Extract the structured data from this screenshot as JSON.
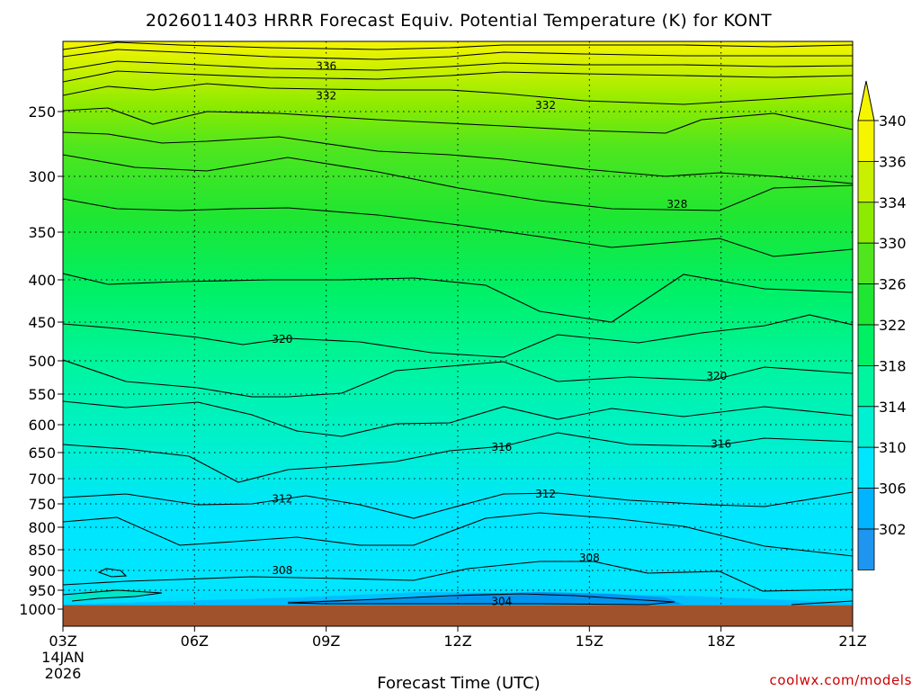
{
  "header": {
    "title": "2026011403 HRRR Forecast Equiv. Potential Temperature (K) for KONT"
  },
  "footer": {
    "credit": "coolwx.com/models"
  },
  "colors": {
    "ground": "#a0522d",
    "colorbar": [
      "#1e96f0",
      "#00b4ff",
      "#00e6ff",
      "#00f0d2",
      "#00f5a0",
      "#00f064",
      "#1ee632",
      "#50e61e",
      "#8ceb00",
      "#c8f000",
      "#f5f500"
    ]
  },
  "chart_data": {
    "type": "contour",
    "title": "2026011403 HRRR Forecast Equiv. Potential Temperature (K) for KONT",
    "xlabel": "Forecast Time (UTC)",
    "ylabel": "",
    "x_ticks": [
      "03Z",
      "06Z",
      "09Z",
      "12Z",
      "15Z",
      "18Z",
      "21Z"
    ],
    "x_start_label": [
      "14JAN",
      "2026"
    ],
    "x_hours": [
      3,
      21
    ],
    "y_ticks": [
      250,
      300,
      350,
      400,
      450,
      500,
      550,
      600,
      650,
      700,
      750,
      800,
      850,
      900,
      950,
      1000
    ],
    "y_range_hpa": [
      200,
      1015
    ],
    "surface_pressure_hpa": 990,
    "colorbar_ticks": [
      302,
      306,
      310,
      314,
      318,
      322,
      326,
      330,
      334,
      336,
      340
    ],
    "contour_labels": [
      {
        "value": "336",
        "hour": 9.0,
        "hpa": 215
      },
      {
        "value": "332",
        "hour": 9.0,
        "hpa": 238
      },
      {
        "value": "332",
        "hour": 14.0,
        "hpa": 245
      },
      {
        "value": "328",
        "hour": 17.0,
        "hpa": 325
      },
      {
        "value": "320",
        "hour": 8.0,
        "hpa": 472
      },
      {
        "value": "320",
        "hour": 17.9,
        "hpa": 523
      },
      {
        "value": "316",
        "hour": 13.0,
        "hpa": 640
      },
      {
        "value": "316",
        "hour": 18.0,
        "hpa": 635
      },
      {
        "value": "312",
        "hour": 8.0,
        "hpa": 740
      },
      {
        "value": "312",
        "hour": 14.0,
        "hpa": 730
      },
      {
        "value": "308",
        "hour": 8.0,
        "hpa": 900
      },
      {
        "value": "308",
        "hour": 15.0,
        "hpa": 870
      },
      {
        "value": "304",
        "hour": 13.0,
        "hpa": 980
      }
    ]
  }
}
